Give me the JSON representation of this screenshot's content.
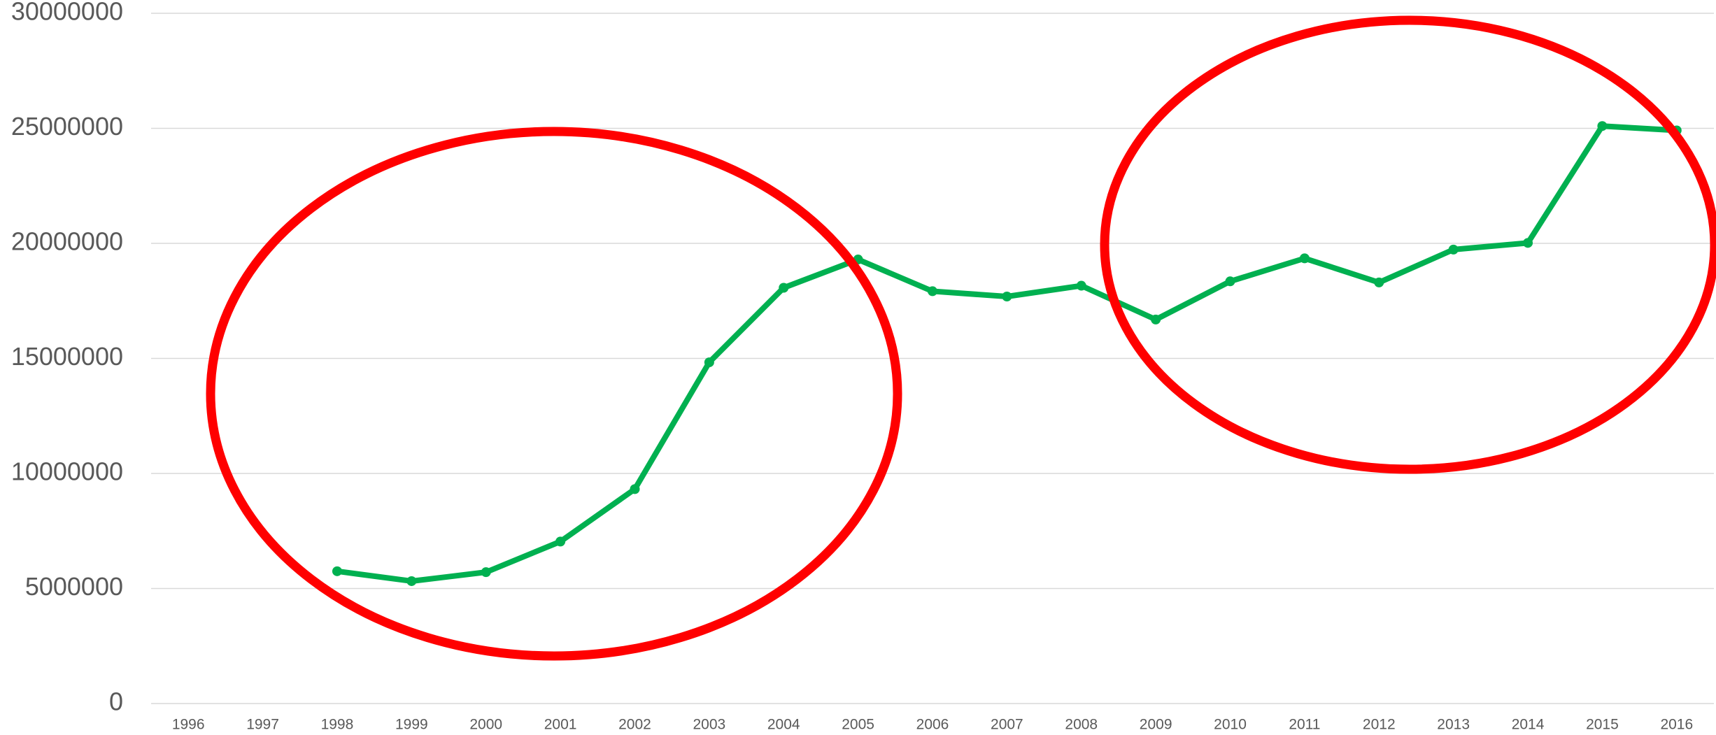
{
  "chart_data": {
    "type": "line",
    "categories": [
      "1996",
      "1997",
      "1998",
      "1999",
      "2000",
      "2001",
      "2002",
      "2003",
      "2004",
      "2005",
      "2006",
      "2007",
      "2008",
      "2009",
      "2010",
      "2011",
      "2012",
      "2013",
      "2014",
      "2015",
      "2016"
    ],
    "series": [
      {
        "color": "#00b050",
        "values": [
          null,
          null,
          5750000,
          5320000,
          5710000,
          7040000,
          9320000,
          14830000,
          18070000,
          19300000,
          17920000,
          17690000,
          18160000,
          16690000,
          18350000,
          19350000,
          18300000,
          19730000,
          20020000,
          25100000,
          24910000
        ]
      }
    ],
    "ylim": [
      0,
      30000000
    ],
    "yticks": [
      0,
      5000000,
      10000000,
      15000000,
      20000000,
      25000000,
      30000000
    ],
    "grid": true
  }
}
